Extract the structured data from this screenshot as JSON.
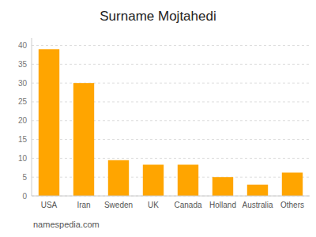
{
  "chart_data": {
    "type": "bar",
    "title": "Surname Mojtahedi",
    "categories": [
      "USA",
      "Iran",
      "Sweden",
      "UK",
      "Canada",
      "Holland",
      "Australia",
      "Others"
    ],
    "values": [
      39,
      30,
      9.5,
      8.3,
      8.3,
      5,
      3,
      6.2
    ],
    "color": "#FFA500",
    "ylim": [
      0,
      42
    ],
    "yticks": [
      0,
      5,
      10,
      15,
      20,
      25,
      30,
      35,
      40
    ],
    "grid": true,
    "annotations": [
      "namespedia.com"
    ]
  }
}
